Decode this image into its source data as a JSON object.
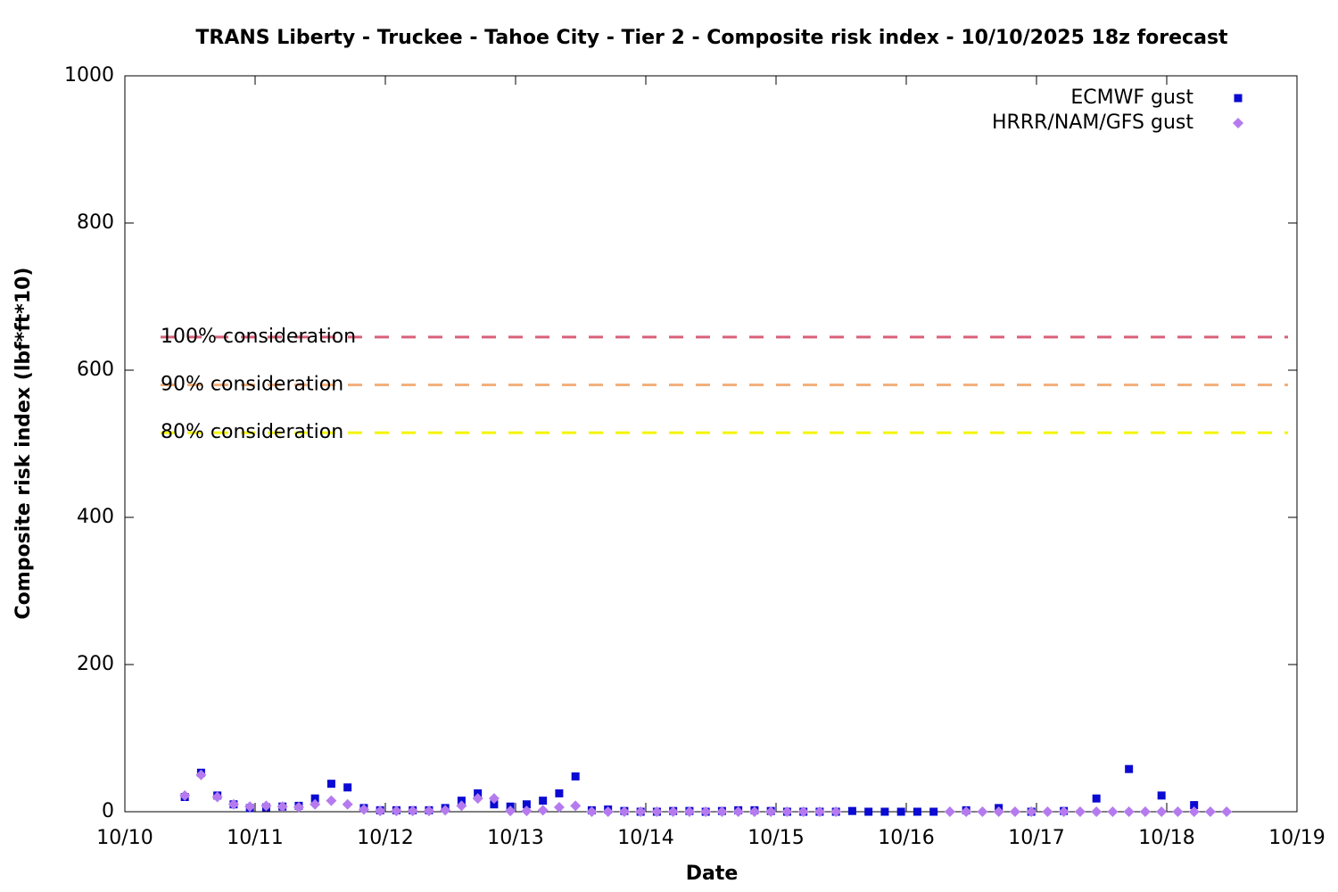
{
  "chart_data": {
    "type": "scatter",
    "title": "TRANS Liberty - Truckee - Tahoe City - Tier 2 - Composite risk index - 10/10/2025 18z forecast",
    "x_label": "Date",
    "y_label": "Composite risk index (lbf*ft*10)",
    "xlim": [
      0,
      9
    ],
    "xticks": [
      {
        "value": 0,
        "label": "10/10"
      },
      {
        "value": 1,
        "label": "10/11"
      },
      {
        "value": 2,
        "label": "10/12"
      },
      {
        "value": 3,
        "label": "10/13"
      },
      {
        "value": 4,
        "label": "10/14"
      },
      {
        "value": 5,
        "label": "10/15"
      },
      {
        "value": 6,
        "label": "10/16"
      },
      {
        "value": 7,
        "label": "10/17"
      },
      {
        "value": 8,
        "label": "10/18"
      },
      {
        "value": 9,
        "label": "10/19"
      }
    ],
    "ylim": [
      0,
      1000
    ],
    "yticks": [
      0,
      200,
      400,
      600,
      800,
      1000
    ],
    "legend": "top-right",
    "series": [
      {
        "name": "ECMWF gust",
        "color": "#0a0ad2",
        "marker": "square",
        "x": [
          0.46,
          0.585,
          0.71,
          0.835,
          0.96,
          1.085,
          1.21,
          1.335,
          1.46,
          1.585,
          1.71,
          1.835,
          1.96,
          2.085,
          2.21,
          2.335,
          2.46,
          2.585,
          2.71,
          2.835,
          2.96,
          3.085,
          3.21,
          3.335,
          3.46,
          3.585,
          3.71,
          3.835,
          3.96,
          4.085,
          4.21,
          4.335,
          4.46,
          4.585,
          4.71,
          4.835,
          4.96,
          5.085,
          5.21,
          5.335,
          5.46,
          5.585,
          5.71,
          5.835,
          5.96,
          6.085,
          6.21,
          6.46,
          6.71,
          6.96,
          7.21,
          7.46,
          7.71,
          7.96,
          8.21
        ],
        "values": [
          20,
          53,
          22,
          10,
          5,
          6,
          7,
          8,
          18,
          38,
          33,
          5,
          2,
          2,
          2,
          2,
          5,
          15,
          25,
          10,
          7,
          10,
          15,
          25,
          48,
          2,
          3,
          1,
          0,
          0,
          1,
          1,
          0,
          1,
          2,
          2,
          1,
          0,
          0,
          0,
          0,
          1,
          0,
          0,
          0,
          0,
          0,
          2,
          5,
          0,
          1,
          18,
          58,
          22,
          9
        ]
      },
      {
        "name": "HRRR/NAM/GFS gust",
        "color": "#b57bee",
        "marker": "diamond",
        "x": [
          0.46,
          0.585,
          0.71,
          0.835,
          0.96,
          1.085,
          1.21,
          1.335,
          1.46,
          1.585,
          1.71,
          1.835,
          1.96,
          2.085,
          2.21,
          2.335,
          2.46,
          2.585,
          2.71,
          2.835,
          2.96,
          3.085,
          3.21,
          3.335,
          3.46,
          3.585,
          3.71,
          3.835,
          3.96,
          4.085,
          4.21,
          4.335,
          4.46,
          4.585,
          4.71,
          4.835,
          4.96,
          5.085,
          5.21,
          5.335,
          5.46,
          6.335,
          6.46,
          6.585,
          6.71,
          6.835,
          6.96,
          7.085,
          7.21,
          7.335,
          7.46,
          7.585,
          7.71,
          7.835,
          7.96,
          8.085,
          8.21,
          8.335,
          8.46
        ],
        "values": [
          22,
          50,
          20,
          10,
          7,
          8,
          7,
          6,
          10,
          15,
          10,
          3,
          1,
          1,
          1,
          1,
          2,
          8,
          18,
          18,
          1,
          1,
          2,
          6,
          8,
          0,
          0,
          0,
          0,
          0,
          0,
          0,
          0,
          0,
          0,
          0,
          0,
          0,
          0,
          0,
          0,
          0,
          0,
          0,
          0,
          0,
          0,
          0,
          0,
          0,
          0,
          0,
          0,
          0,
          0,
          0,
          0,
          0,
          0
        ]
      }
    ],
    "annotations": [
      {
        "text": "100% consideration",
        "value": 645,
        "color": "#d9607a"
      },
      {
        "text": "90% consideration",
        "value": 580,
        "color": "#f3b07c"
      },
      {
        "text": "80% consideration",
        "value": 515,
        "color": "#f5f500"
      }
    ]
  }
}
